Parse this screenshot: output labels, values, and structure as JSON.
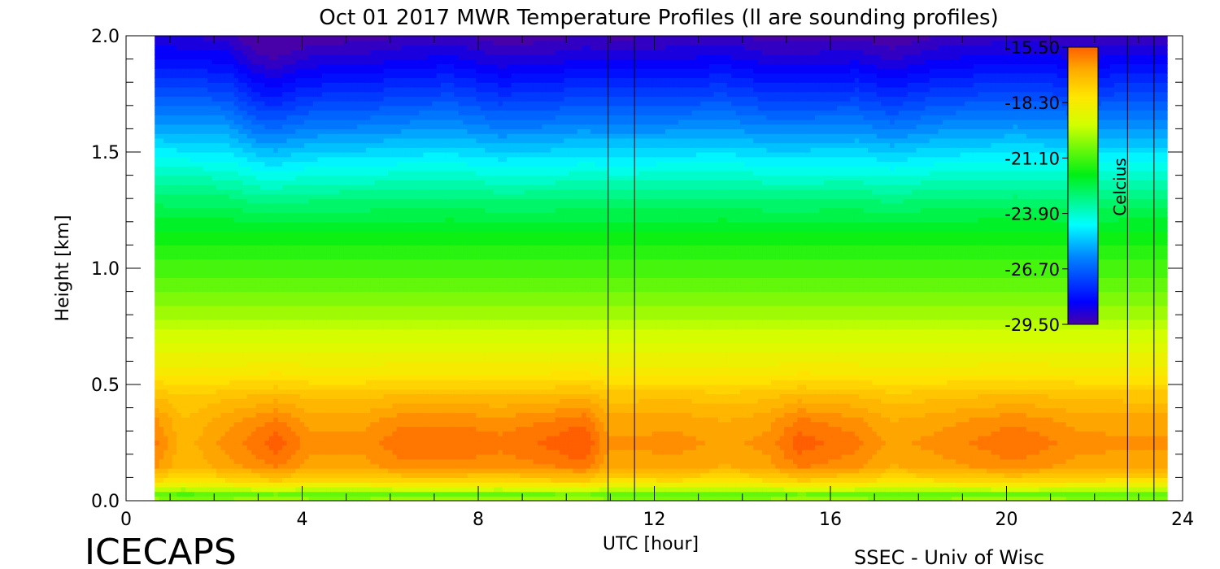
{
  "chart_data": {
    "type": "heatmap",
    "title": "Oct 01 2017 MWR Temperature Profiles (ll are sounding profiles)",
    "xlabel": "UTC [hour]",
    "ylabel": "Height [km]",
    "xlim": [
      0,
      24
    ],
    "ylim": [
      0,
      2.0
    ],
    "x_ticks": [
      "0",
      "4",
      "8",
      "12",
      "16",
      "20",
      "24"
    ],
    "y_ticks": [
      "0.0",
      "0.5",
      "1.0",
      "1.5",
      "2.0"
    ],
    "colorbar": {
      "label": "Celcius",
      "range": [
        -29.5,
        -15.5
      ],
      "ticks": [
        "-15.50",
        "-18.30",
        "-21.10",
        "-23.90",
        "-26.70",
        "-29.50"
      ]
    },
    "data_time_range": [
      0.65,
      23.65
    ],
    "data_gaps": [
      [
        10.95,
        11.55
      ],
      [
        22.75,
        23.35
      ]
    ],
    "sounding_times": [
      10.95,
      11.55,
      22.75,
      23.35
    ],
    "heights": [
      0.0,
      0.03,
      0.08,
      0.15,
      0.25,
      0.35,
      0.45,
      0.55,
      0.7,
      0.85,
      1.0,
      1.15,
      1.3,
      1.45,
      1.6,
      1.75,
      1.9,
      2.0
    ],
    "profile": [
      -20.0,
      -20.8,
      -18.0,
      -16.6,
      -16.3,
      -16.6,
      -17.2,
      -18.2,
      -19.3,
      -20.3,
      -21.1,
      -21.9,
      -23.0,
      -24.4,
      -25.9,
      -27.3,
      -28.6,
      -29.3
    ],
    "time_anomaly": {
      "times": [
        0.65,
        1.3,
        2.3,
        3.0,
        3.4,
        4.2,
        5.4,
        6.4,
        7.4,
        8.5,
        9.6,
        10.4,
        10.95,
        11.55,
        12.5,
        13.6,
        14.6,
        15.3,
        16.6,
        17.4,
        18.5,
        19.6,
        20.2,
        21.6,
        22.75,
        23.65
      ],
      "anomaly_low": [
        0.4,
        -0.6,
        0.1,
        0.5,
        0.8,
        0.1,
        0.1,
        0.6,
        0.6,
        0.4,
        0.7,
        1.0,
        0.0,
        0.0,
        0.1,
        -0.2,
        0.1,
        0.8,
        0.4,
        -0.2,
        0.1,
        0.4,
        0.6,
        0.1,
        0.0,
        0.0
      ],
      "anomaly_high": [
        0.4,
        0.3,
        0.2,
        -0.6,
        -0.7,
        -0.3,
        -0.2,
        0.0,
        0.1,
        -0.3,
        -0.2,
        0.0,
        -0.1,
        -0.1,
        0.0,
        0.1,
        -0.2,
        -0.2,
        -0.1,
        -0.4,
        0.0,
        0.1,
        0.2,
        0.0,
        0.1,
        0.1
      ]
    }
  },
  "footer": {
    "left": "ICECAPS",
    "right": "SSEC - Univ of Wisc"
  }
}
